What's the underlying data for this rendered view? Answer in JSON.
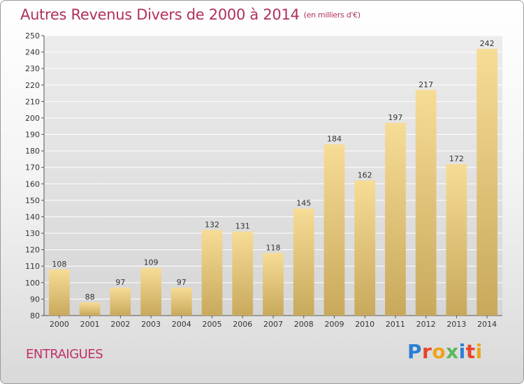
{
  "title": "Autres Revenus Divers de 2000 à 2014",
  "unit_note": "(en milliers d'€)",
  "place": "ENTRAIGUES",
  "brand": {
    "letters": [
      {
        "ch": "P",
        "color": "#2a7fd4"
      },
      {
        "ch": "r",
        "color": "#e8442a"
      },
      {
        "ch": "o",
        "color": "#f0a21a"
      },
      {
        "ch": "x",
        "color": "#5cb85c"
      },
      {
        "ch": "i",
        "color": "#2a7fd4"
      },
      {
        "ch": "t",
        "color": "#e8442a"
      },
      {
        "ch": "i",
        "color": "#f0a21a"
      }
    ]
  },
  "chart_data": {
    "type": "bar",
    "title": "Autres Revenus Divers de 2000 à 2014",
    "categories": [
      "2000",
      "2001",
      "2002",
      "2003",
      "2004",
      "2005",
      "2006",
      "2007",
      "2008",
      "2009",
      "2010",
      "2011",
      "2012",
      "2013",
      "2014"
    ],
    "values": [
      108,
      88,
      97,
      109,
      97,
      132,
      131,
      118,
      145,
      184,
      162,
      197,
      217,
      172,
      242
    ],
    "ylim": [
      80,
      250
    ],
    "yticks": [
      80,
      90,
      100,
      110,
      120,
      130,
      140,
      150,
      160,
      170,
      180,
      190,
      200,
      210,
      220,
      230,
      240,
      250
    ],
    "grid": true,
    "bar_color_top": "#f7dc96",
    "bar_color_bottom": "#c8a95c"
  }
}
